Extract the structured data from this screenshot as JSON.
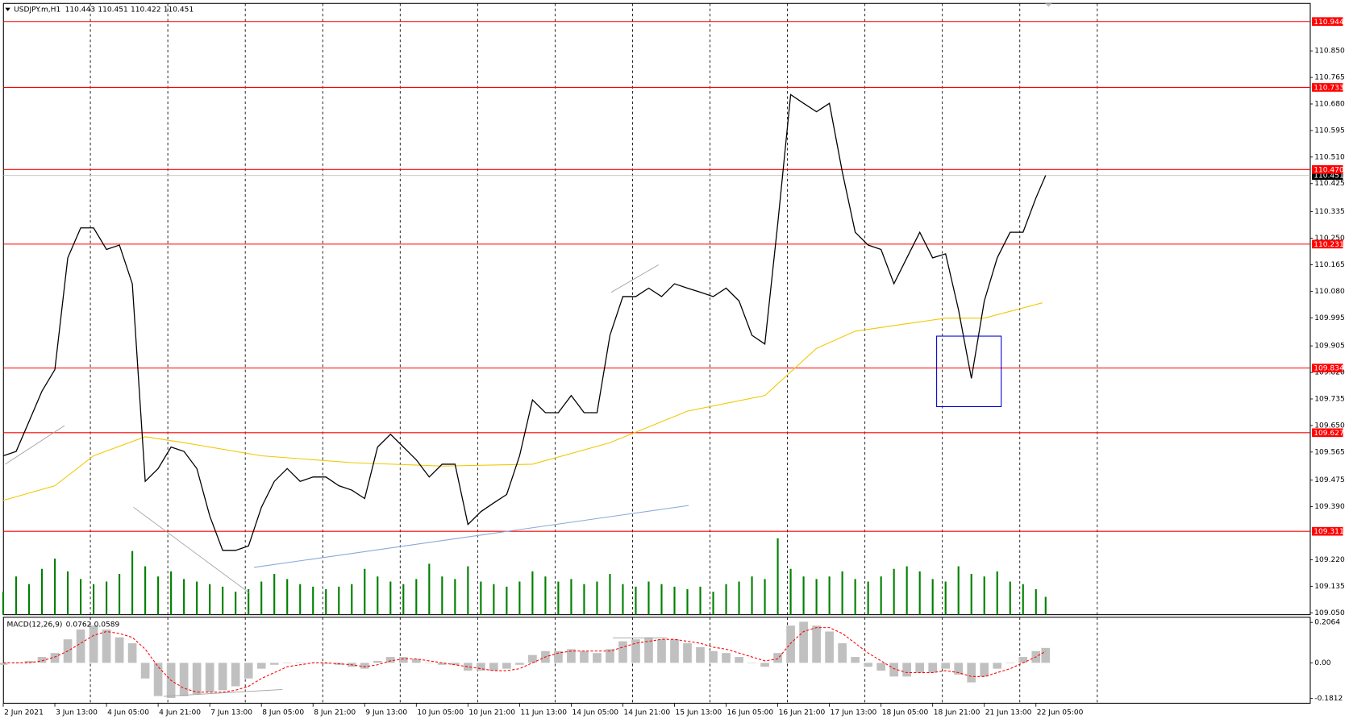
{
  "chart_data": [
    {
      "type": "line",
      "title": "USDJPY.m,H1",
      "last_bar": {
        "open": 110.443,
        "high": 110.451,
        "low": 110.422,
        "close": 110.451
      },
      "x": [
        0,
        4,
        8,
        12,
        16,
        20,
        24,
        28,
        32,
        36,
        40,
        44,
        48,
        52,
        56,
        60,
        64,
        68,
        72,
        76,
        80,
        84,
        88,
        92,
        96,
        100,
        104,
        108,
        112,
        116,
        120,
        124,
        128,
        132,
        136,
        140,
        144,
        148,
        152,
        156,
        160,
        164,
        168,
        172,
        176,
        180,
        184,
        188,
        192,
        196,
        200,
        204,
        208,
        212,
        216,
        220,
        224,
        228,
        232,
        236,
        240,
        244,
        248,
        252,
        256,
        260,
        264,
        268,
        272,
        276,
        280,
        284,
        288,
        292,
        296,
        300,
        304,
        308,
        312,
        316,
        320,
        323
      ],
      "series": [
        {
          "name": "Close",
          "color": "#000000",
          "values": [
            109.553,
            109.567,
            109.663,
            109.76,
            109.829,
            110.187,
            110.283,
            110.283,
            110.214,
            110.228,
            110.104,
            109.471,
            109.512,
            109.581,
            109.567,
            109.512,
            109.36,
            109.25,
            109.25,
            109.264,
            109.388,
            109.471,
            109.512,
            109.471,
            109.485,
            109.485,
            109.457,
            109.443,
            109.416,
            109.581,
            109.622,
            109.581,
            109.54,
            109.485,
            109.526,
            109.526,
            109.333,
            109.374,
            109.402,
            109.429,
            109.553,
            109.732,
            109.691,
            109.691,
            109.746,
            109.691,
            109.691,
            109.939,
            110.063,
            110.063,
            110.09,
            110.063,
            110.104,
            110.09,
            110.077,
            110.063,
            110.09,
            110.049,
            109.939,
            109.911,
            110.297,
            110.71,
            110.682,
            110.655,
            110.682,
            110.462,
            110.269,
            110.228,
            110.214,
            110.104,
            110.187,
            110.269,
            110.187,
            110.2,
            110.021,
            109.801,
            110.049,
            110.187,
            110.269,
            110.269,
            110.379,
            110.451
          ]
        },
        {
          "name": "Volume",
          "color": "#008000",
          "axis": "volume",
          "values": [
            900,
            1500,
            1200,
            1800,
            2200,
            1700,
            1400,
            1200,
            1300,
            1600,
            2500,
            1900,
            1500,
            1700,
            1400,
            1300,
            1200,
            1100,
            900,
            1000,
            1300,
            1600,
            1400,
            1200,
            1100,
            1000,
            1100,
            1200,
            1800,
            1500,
            1300,
            1200,
            1400,
            2000,
            1500,
            1400,
            1900,
            1300,
            1200,
            1100,
            1300,
            1700,
            1500,
            1300,
            1400,
            1200,
            1300,
            1600,
            1200,
            1100,
            1300,
            1200,
            1100,
            1000,
            1100,
            900,
            1200,
            1300,
            1500,
            1400,
            3000,
            1800,
            1500,
            1400,
            1500,
            1700,
            1400,
            1300,
            1500,
            1800,
            1900,
            1700,
            1400,
            1300,
            1900,
            1600,
            1500,
            1700,
            1300,
            1200,
            1000,
            700
          ]
        }
      ],
      "ma": {
        "color": "#f0c800",
        "x": [
          0,
          16,
          28,
          44,
          56,
          80,
          108,
          136,
          164,
          188,
          212,
          236,
          252,
          264,
          292,
          304,
          322
        ],
        "values": [
          109.41,
          109.457,
          109.553,
          109.614,
          109.595,
          109.553,
          109.531,
          109.52,
          109.526,
          109.595,
          109.696,
          109.746,
          109.897,
          109.952,
          109.994,
          109.994,
          110.043
        ]
      },
      "levels": [
        110.944,
        110.733,
        {
          "value": 110.47,
          "label": "110.470"
        },
        110.231,
        109.834,
        109.627,
        109.311
      ],
      "level_color": "#ff0000",
      "vlim": [
        0,
        24000
      ],
      "xlim": [
        -1,
        405
      ],
      "ylim": [
        109.044,
        111.002
      ],
      "yticks": [
        {
          "value": 110.85,
          "label": "110.850"
        },
        110.765,
        {
          "value": 110.68,
          "label": "110.680"
        },
        110.595,
        {
          "value": 110.51,
          "label": "110.510"
        },
        110.425,
        110.335,
        {
          "value": 110.25,
          "label": "110.250"
        },
        110.165,
        {
          "value": 110.08,
          "label": "110.080"
        },
        109.995,
        109.905,
        {
          "value": 109.82,
          "label": "109.820"
        },
        109.735,
        {
          "value": 109.65,
          "label": "109.650"
        },
        109.565,
        109.475,
        {
          "value": 109.39,
          "label": "109.390"
        },
        {
          "value": 109.22,
          "label": "109.220"
        },
        109.135,
        {
          "value": 109.05,
          "label": "109.050"
        }
      ],
      "xticks": [
        {
          "value": 0,
          "label": "2 Jun 2021"
        },
        {
          "value": 16,
          "label": "3 Jun 13:00"
        },
        {
          "value": 32,
          "label": "4 Jun 05:00"
        },
        {
          "value": 48,
          "label": "4 Jun 21:00"
        },
        {
          "value": 64,
          "label": "7 Jun 13:00"
        },
        {
          "value": 80,
          "label": "8 Jun 05:00"
        },
        {
          "value": 96,
          "label": "8 Jun 21:00"
        },
        {
          "value": 112,
          "label": "9 Jun 13:00"
        },
        {
          "value": 128,
          "label": "10 Jun 05:00"
        },
        {
          "value": 144,
          "label": "10 Jun 21:00"
        },
        {
          "value": 160,
          "label": "11 Jun 13:00"
        },
        {
          "value": 176,
          "label": "14 Jun 05:00"
        },
        {
          "value": 192,
          "label": "14 Jun 21:00"
        },
        {
          "value": 208,
          "label": "15 Jun 13:00"
        },
        {
          "value": 224,
          "label": "16 Jun 05:00"
        },
        {
          "value": 240,
          "label": "16 Jun 21:00"
        },
        {
          "value": 256,
          "label": "17 Jun 13:00"
        },
        {
          "value": 272,
          "label": "18 Jun 05:00"
        },
        {
          "value": 288,
          "label": "18 Jun 21:00"
        },
        {
          "value": 304,
          "label": "21 Jun 13:00"
        },
        {
          "value": 320,
          "label": "22 Jun 05:00"
        }
      ],
      "xgrid": [
        27,
        51,
        75,
        99,
        123,
        147,
        171,
        195,
        219,
        243,
        267,
        291,
        315,
        339
      ],
      "grid": true
    },
    {
      "type": "macd",
      "title": "MACD(12,26,9)",
      "x": [
        0,
        4,
        8,
        12,
        16,
        20,
        24,
        28,
        32,
        36,
        40,
        44,
        48,
        52,
        56,
        60,
        64,
        68,
        72,
        76,
        80,
        84,
        88,
        92,
        96,
        100,
        104,
        108,
        112,
        116,
        120,
        124,
        128,
        132,
        136,
        140,
        144,
        148,
        152,
        156,
        160,
        164,
        168,
        172,
        176,
        180,
        184,
        188,
        192,
        196,
        200,
        204,
        208,
        212,
        216,
        220,
        224,
        228,
        232,
        236,
        240,
        244,
        248,
        252,
        256,
        260,
        264,
        268,
        272,
        276,
        280,
        284,
        288,
        292,
        296,
        300,
        304,
        308,
        312,
        316,
        320,
        323
      ],
      "series": [
        {
          "name": "MACD",
          "color": "#c0c0c0",
          "values": [
            -0.01,
            0,
            0.01,
            0.03,
            0.05,
            0.12,
            0.17,
            0.19,
            0.17,
            0.13,
            0.1,
            -0.08,
            -0.17,
            -0.18,
            -0.17,
            -0.16,
            -0.15,
            -0.14,
            -0.12,
            -0.08,
            -0.03,
            -0.01,
            0,
            0,
            0,
            -0.005,
            -0.01,
            -0.02,
            -0.03,
            0.01,
            0.03,
            0.03,
            0.02,
            0,
            -0.01,
            -0.01,
            -0.04,
            -0.04,
            -0.04,
            -0.03,
            -0.01,
            0.04,
            0.06,
            0.06,
            0.07,
            0.06,
            0.05,
            0.07,
            0.11,
            0.12,
            0.13,
            0.12,
            0.12,
            0.1,
            0.08,
            0.06,
            0.05,
            0.03,
            0,
            -0.02,
            0.05,
            0.19,
            0.21,
            0.19,
            0.16,
            0.1,
            0.03,
            -0.02,
            -0.04,
            -0.07,
            -0.07,
            -0.05,
            -0.05,
            -0.03,
            -0.06,
            -0.1,
            -0.07,
            -0.03,
            0,
            0.03,
            0.06,
            0.0762
          ]
        },
        {
          "name": "Signal",
          "color": "#ff0000",
          "values": [
            0,
            0,
            0,
            0.01,
            0.03,
            0.06,
            0.1,
            0.14,
            0.16,
            0.15,
            0.13,
            0.07,
            -0.02,
            -0.09,
            -0.13,
            -0.15,
            -0.15,
            -0.15,
            -0.14,
            -0.12,
            -0.08,
            -0.05,
            -0.02,
            -0.01,
            0,
            0,
            -0.005,
            -0.01,
            -0.02,
            -0.01,
            0.01,
            0.02,
            0.02,
            0.01,
            0,
            -0.01,
            -0.02,
            -0.03,
            -0.04,
            -0.04,
            -0.03,
            0,
            0.03,
            0.05,
            0.06,
            0.06,
            0.06,
            0.06,
            0.08,
            0.1,
            0.11,
            0.12,
            0.12,
            0.11,
            0.1,
            0.08,
            0.07,
            0.05,
            0.03,
            0.01,
            0.02,
            0.1,
            0.16,
            0.18,
            0.18,
            0.15,
            0.1,
            0.05,
            0.01,
            -0.03,
            -0.05,
            -0.05,
            -0.05,
            -0.04,
            -0.05,
            -0.07,
            -0.07,
            -0.05,
            -0.03,
            0,
            0.03,
            0.0589
          ]
        }
      ],
      "xlim": [
        -1,
        405
      ],
      "ylim": [
        -0.2064,
        0.2328
      ],
      "yticks": [
        0.2064,
        {
          "value": 0,
          "label": "0.00"
        },
        -0.1812
      ],
      "grid": true
    }
  ]
}
